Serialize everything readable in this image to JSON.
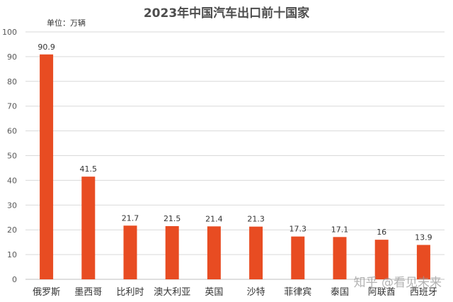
{
  "chart_data": {
    "type": "bar",
    "title": "2023年中国汽车出口前十国家",
    "unit_label": "单位：万辆",
    "categories": [
      "俄罗斯",
      "墨西哥",
      "比利时",
      "澳大利亚",
      "英国",
      "沙特",
      "菲律宾",
      "泰国",
      "阿联酋",
      "西班牙"
    ],
    "values": [
      90.9,
      41.5,
      21.7,
      21.5,
      21.4,
      21.3,
      17.3,
      17.1,
      16,
      13.9
    ],
    "data_labels": [
      "90.9",
      "41.5",
      "21.7",
      "21.5",
      "21.4",
      "21.3",
      "17.3",
      "17.1",
      "16",
      "13.9"
    ],
    "ylim": [
      0,
      100
    ],
    "yticks": [
      0,
      10,
      20,
      30,
      40,
      50,
      60,
      70,
      80,
      90,
      100
    ],
    "xlabel": "",
    "ylabel": "",
    "grid": true,
    "legend": "none",
    "bar_color": "#e84c22",
    "grid_color": "#d9d9d9"
  },
  "watermark": "知乎 @看见未来"
}
